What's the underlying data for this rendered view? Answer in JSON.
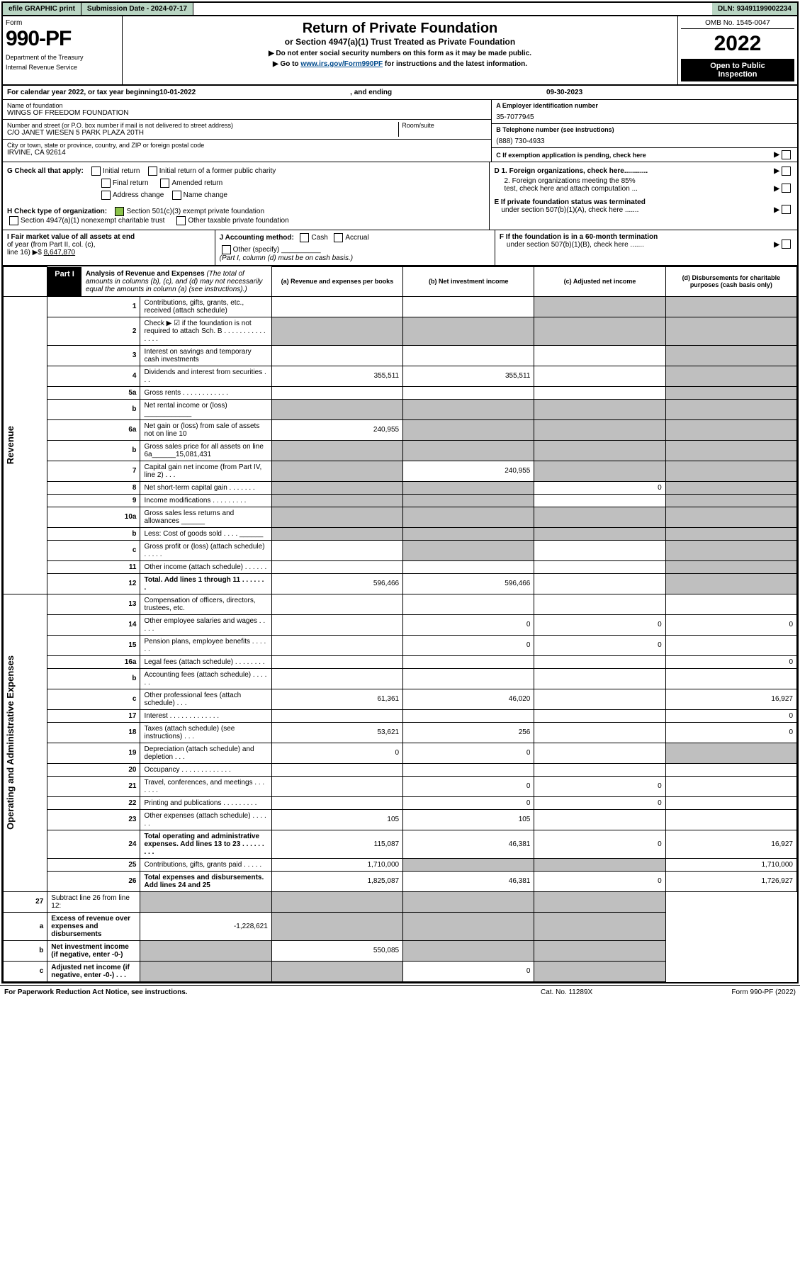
{
  "topbar": {
    "efile": "efile GRAPHIC print",
    "subdate_label": "Submission Date - ",
    "subdate": "2024-07-17",
    "dln_label": "DLN: ",
    "dln": "93491199002234"
  },
  "header": {
    "form_word": "Form",
    "form_number": "990-PF",
    "dept1": "Department of the Treasury",
    "dept2": "Internal Revenue Service",
    "title": "Return of Private Foundation",
    "subtitle": "or Section 4947(a)(1) Trust Treated as Private Foundation",
    "note1": "▶ Do not enter social security numbers on this form as it may be made public.",
    "note2a": "▶ Go to ",
    "note2link": "www.irs.gov/Form990PF",
    "note2b": " for instructions and the latest information.",
    "omb": "OMB No. 1545-0047",
    "year": "2022",
    "inspect1": "Open to Public",
    "inspect2": "Inspection"
  },
  "calendar": {
    "prefix": "For calendar year 2022, or tax year beginning ",
    "begin": "10-01-2022",
    "mid": " , and ending ",
    "end": "09-30-2023"
  },
  "info": {
    "name_label": "Name of foundation",
    "name": "WINGS OF FREEDOM FOUNDATION",
    "addr_label": "Number and street (or P.O. box number if mail is not delivered to street address)",
    "room_label": "Room/suite",
    "addr": "C/O JANET WIESEN 5 PARK PLAZA 20TH",
    "city_label": "City or town, state or province, country, and ZIP or foreign postal code",
    "city": "IRVINE, CA  92614",
    "ein_label": "A Employer identification number",
    "ein": "35-7077945",
    "phone_label": "B Telephone number (see instructions)",
    "phone": "(888) 730-4933",
    "c_label": "C If exemption application is pending, check here"
  },
  "g": {
    "label": "G Check all that apply:",
    "o1": "Initial return",
    "o2": "Initial return of a former public charity",
    "o3": "Final return",
    "o4": "Amended return",
    "o5": "Address change",
    "o6": "Name change"
  },
  "h": {
    "label": "H Check type of organization:",
    "o1": "Section 501(c)(3) exempt private foundation",
    "o2": "Section 4947(a)(1) nonexempt charitable trust",
    "o3": "Other taxable private foundation"
  },
  "d": {
    "d1": "D 1. Foreign organizations, check here............",
    "d2a": "2. Foreign organizations meeting the 85%",
    "d2b": "test, check here and attach computation ...",
    "e1": "E  If private foundation status was terminated",
    "e2": "under section 507(b)(1)(A), check here .......",
    "f1": "F  If the foundation is in a 60-month termination",
    "f2": "under section 507(b)(1)(B), check here ......."
  },
  "assets": {
    "i1": "I Fair market value of all assets at end",
    "i2": "of year (from Part II, col. (c),",
    "i3_pre": "line 16) ▶$ ",
    "i3_val": "8,647,870",
    "j1": "J Accounting method:",
    "jcash": "Cash",
    "jaccr": "Accrual",
    "j2": "Other (specify)",
    "j3": "(Part I, column (d) must be on cash basis.)"
  },
  "part1": {
    "label": "Part I",
    "title": "Analysis of Revenue and Expenses",
    "title_note": " (The total of amounts in columns (b), (c), and (d) may not necessarily equal the amounts in column (a) (see instructions).)",
    "col_a": "(a)  Revenue and expenses per books",
    "col_b": "(b)  Net investment income",
    "col_c": "(c)  Adjusted net income",
    "col_d": "(d)  Disbursements for charitable purposes (cash basis only)"
  },
  "side": {
    "rev": "Revenue",
    "opex": "Operating and Administrative Expenses"
  },
  "rows": [
    {
      "n": "1",
      "lbl": "Contributions, gifts, grants, etc., received (attach schedule)",
      "a": "",
      "b": "",
      "c": "grey",
      "d": "grey"
    },
    {
      "n": "2",
      "lbl": "Check ▶ ☑ if the foundation is not required to attach Sch. B   .   .   .   .   .   .   .   .   .   .   .   .   .   .   .",
      "a": "grey",
      "b": "grey",
      "c": "grey",
      "d": "grey"
    },
    {
      "n": "3",
      "lbl": "Interest on savings and temporary cash investments",
      "a": "",
      "b": "",
      "c": "",
      "d": "grey"
    },
    {
      "n": "4",
      "lbl": "Dividends and interest from securities   .   .   .",
      "a": "355,511",
      "b": "355,511",
      "c": "",
      "d": "grey"
    },
    {
      "n": "5a",
      "lbl": "Gross rents   .   .   .   .   .   .   .   .   .   .   .   .",
      "a": "",
      "b": "",
      "c": "",
      "d": "grey"
    },
    {
      "n": "b",
      "lbl": "Net rental income or (loss) ____________",
      "a": "grey",
      "b": "grey",
      "c": "grey",
      "d": "grey"
    },
    {
      "n": "6a",
      "lbl": "Net gain or (loss) from sale of assets not on line 10",
      "a": "240,955",
      "b": "grey",
      "c": "grey",
      "d": "grey"
    },
    {
      "n": "b",
      "lbl": "Gross sales price for all assets on line 6a______15,081,431",
      "a": "grey",
      "b": "grey",
      "c": "grey",
      "d": "grey",
      "small": true
    },
    {
      "n": "7",
      "lbl": "Capital gain net income (from Part IV, line 2)  .  .  .",
      "a": "grey",
      "b": "240,955",
      "c": "grey",
      "d": "grey"
    },
    {
      "n": "8",
      "lbl": "Net short-term capital gain  .   .   .   .   .   .   .",
      "a": "grey",
      "b": "grey",
      "c": "0",
      "d": "grey"
    },
    {
      "n": "9",
      "lbl": "Income modifications .   .   .   .   .   .   .   .   .",
      "a": "grey",
      "b": "grey",
      "c": "",
      "d": "grey"
    },
    {
      "n": "10a",
      "lbl": "Gross sales less returns and allowances ______",
      "a": "grey",
      "b": "grey",
      "c": "grey",
      "d": "grey"
    },
    {
      "n": "b",
      "lbl": "Less: Cost of goods sold   .   .   .   . ______",
      "a": "grey",
      "b": "grey",
      "c": "grey",
      "d": "grey"
    },
    {
      "n": "c",
      "lbl": "Gross profit or (loss) (attach schedule)   .   .   .   .   .",
      "a": "",
      "b": "grey",
      "c": "",
      "d": "grey"
    },
    {
      "n": "11",
      "lbl": "Other income (attach schedule)   .   .   .   .   .   .",
      "a": "",
      "b": "",
      "c": "",
      "d": "grey"
    },
    {
      "n": "12",
      "lbl": "Total. Add lines 1 through 11   .   .   .   .   .   .   .",
      "a": "596,466",
      "b": "596,466",
      "c": "",
      "d": "grey",
      "bold": true
    }
  ],
  "rows_ex": [
    {
      "n": "13",
      "lbl": "Compensation of officers, directors, trustees, etc.",
      "a": "",
      "b": "",
      "c": "",
      "d": ""
    },
    {
      "n": "14",
      "lbl": "Other employee salaries and wages   .   .   .   .   .",
      "a": "",
      "b": "0",
      "c": "0",
      "d": "0"
    },
    {
      "n": "15",
      "lbl": "Pension plans, employee benefits  .   .   .   .   .   .",
      "a": "",
      "b": "0",
      "c": "0",
      "d": ""
    },
    {
      "n": "16a",
      "lbl": "Legal fees (attach schedule) .   .   .   .   .   .   .   .",
      "a": "",
      "b": "",
      "c": "",
      "d": "0"
    },
    {
      "n": "b",
      "lbl": "Accounting fees (attach schedule) .   .   .   .   .   .",
      "a": "",
      "b": "",
      "c": "",
      "d": ""
    },
    {
      "n": "c",
      "lbl": "Other professional fees (attach schedule)   .   .   .",
      "a": "61,361",
      "b": "46,020",
      "c": "",
      "d": "16,927"
    },
    {
      "n": "17",
      "lbl": "Interest  .   .   .   .   .   .   .   .   .   .   .   .   .",
      "a": "",
      "b": "",
      "c": "",
      "d": "0"
    },
    {
      "n": "18",
      "lbl": "Taxes (attach schedule) (see instructions)   .   .   .",
      "a": "53,621",
      "b": "256",
      "c": "",
      "d": "0"
    },
    {
      "n": "19",
      "lbl": "Depreciation (attach schedule) and depletion   .   .   .",
      "a": "0",
      "b": "0",
      "c": "",
      "d": "grey"
    },
    {
      "n": "20",
      "lbl": "Occupancy .   .   .   .   .   .   .   .   .   .   .   .   .",
      "a": "",
      "b": "",
      "c": "",
      "d": ""
    },
    {
      "n": "21",
      "lbl": "Travel, conferences, and meetings .   .   .   .   .   .   .",
      "a": "",
      "b": "0",
      "c": "0",
      "d": ""
    },
    {
      "n": "22",
      "lbl": "Printing and publications .   .   .   .   .   .   .   .   .",
      "a": "",
      "b": "0",
      "c": "0",
      "d": ""
    },
    {
      "n": "23",
      "lbl": "Other expenses (attach schedule) .   .   .   .   .   .",
      "a": "105",
      "b": "105",
      "c": "",
      "d": ""
    },
    {
      "n": "24",
      "lbl": "Total operating and administrative expenses. Add lines 13 to 23   .   .   .   .   .   .   .   .   .",
      "a": "115,087",
      "b": "46,381",
      "c": "0",
      "d": "16,927",
      "bold": true
    },
    {
      "n": "25",
      "lbl": "Contributions, gifts, grants paid   .   .   .   .   .",
      "a": "1,710,000",
      "b": "grey",
      "c": "grey",
      "d": "1,710,000"
    },
    {
      "n": "26",
      "lbl": "Total expenses and disbursements. Add lines 24 and 25",
      "a": "1,825,087",
      "b": "46,381",
      "c": "0",
      "d": "1,726,927",
      "bold": true
    }
  ],
  "rows_net": [
    {
      "n": "27",
      "lbl": "Subtract line 26 from line 12:",
      "a": "grey",
      "b": "grey",
      "c": "grey",
      "d": "grey"
    },
    {
      "n": "a",
      "lbl": "Excess of revenue over expenses and disbursements",
      "a": "-1,228,621",
      "b": "grey",
      "c": "grey",
      "d": "grey",
      "bold": true
    },
    {
      "n": "b",
      "lbl": "Net investment income (if negative, enter -0-)",
      "a": "grey",
      "b": "550,085",
      "c": "grey",
      "d": "grey",
      "bold": true
    },
    {
      "n": "c",
      "lbl": "Adjusted net income (if negative, enter -0-)   .   .   .",
      "a": "grey",
      "b": "grey",
      "c": "0",
      "d": "grey",
      "bold": true
    }
  ],
  "footer": {
    "l": "For Paperwork Reduction Act Notice, see instructions.",
    "m": "Cat. No. 11289X",
    "r": "Form 990-PF (2022)"
  },
  "colors": {
    "green_bg": "#b9d5c3",
    "grey_cell": "#bfbfbf",
    "link": "#004b8d",
    "checkbox_green": "#8bc34a"
  }
}
